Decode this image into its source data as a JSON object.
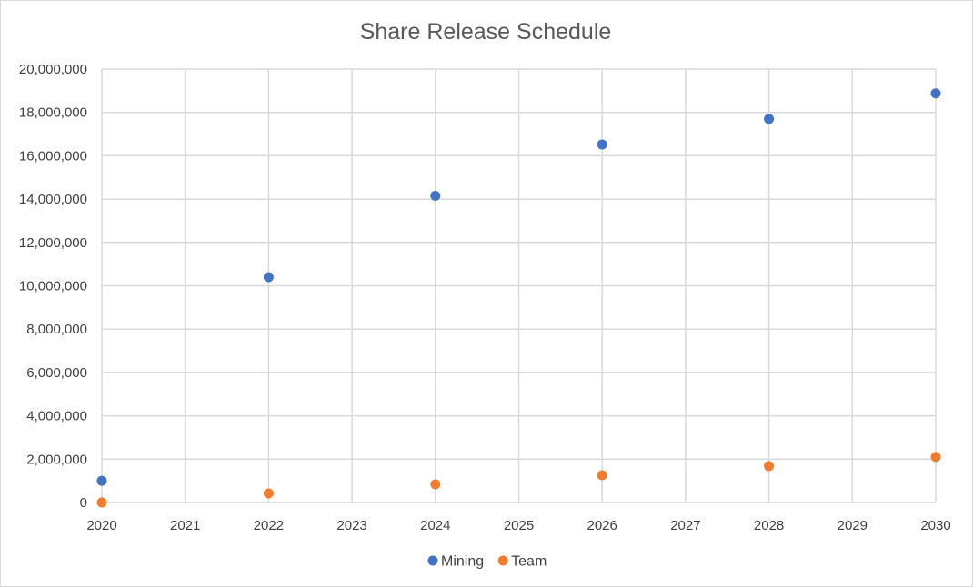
{
  "chart_data": {
    "type": "scatter",
    "title": "Share Release Schedule",
    "xlabel": "",
    "ylabel": "",
    "xlim": [
      2020,
      2030
    ],
    "ylim": [
      0,
      20000000
    ],
    "x_ticks": [
      "2020",
      "2021",
      "2022",
      "2023",
      "2024",
      "2025",
      "2026",
      "2027",
      "2028",
      "2029",
      "2030"
    ],
    "y_ticks": [
      "0",
      "2,000,000",
      "4,000,000",
      "6,000,000",
      "8,000,000",
      "10,000,000",
      "12,000,000",
      "14,000,000",
      "16,000,000",
      "18,000,000",
      "20,000,000"
    ],
    "grid": true,
    "legend_position": "bottom",
    "series": [
      {
        "name": "Mining",
        "color": "#4472c4",
        "points": [
          {
            "x": 2020,
            "y": 1000000
          },
          {
            "x": 2022,
            "y": 10400000
          },
          {
            "x": 2024,
            "y": 14150000
          },
          {
            "x": 2026,
            "y": 16520000
          },
          {
            "x": 2028,
            "y": 17700000
          },
          {
            "x": 2030,
            "y": 18880000
          }
        ]
      },
      {
        "name": "Team",
        "color": "#ed7d31",
        "points": [
          {
            "x": 2020,
            "y": 0
          },
          {
            "x": 2022,
            "y": 420000
          },
          {
            "x": 2024,
            "y": 840000
          },
          {
            "x": 2026,
            "y": 1260000
          },
          {
            "x": 2028,
            "y": 1680000
          },
          {
            "x": 2030,
            "y": 2100000
          }
        ]
      }
    ]
  }
}
